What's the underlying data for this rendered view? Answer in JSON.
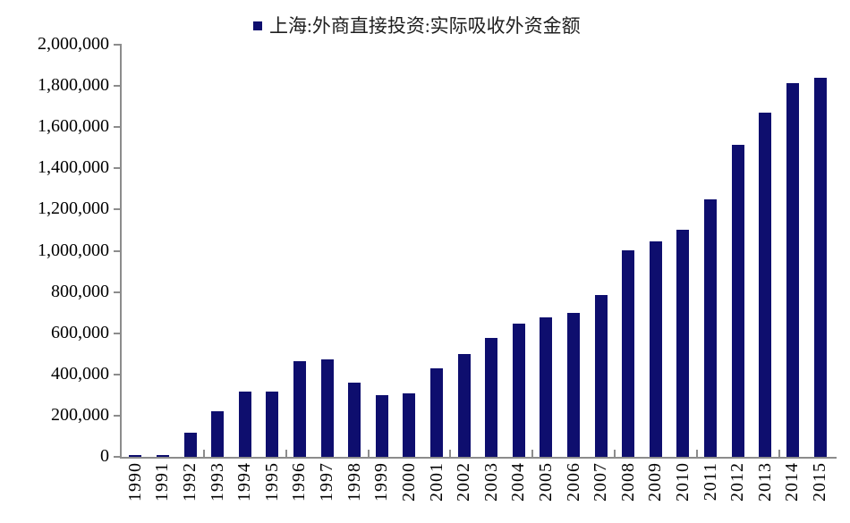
{
  "chart_data": {
    "type": "bar",
    "title": "",
    "legend_label": "上海:外商直接投资:实际吸收外资金额",
    "legend_position": "top-center",
    "legend_marker": "navy-square",
    "xlabel": "",
    "ylabel": "",
    "grid": "off",
    "ylim": [
      0,
      2000000
    ],
    "y_tick_step": 200000,
    "y_tick_labels": [
      "0",
      "200,000",
      "400,000",
      "600,000",
      "800,000",
      "1,000,000",
      "1,200,000",
      "1,400,000",
      "1,600,000",
      "1,800,000",
      "2,000,000"
    ],
    "x_minor_tick_interval": 3,
    "categories": [
      "1990",
      "1991",
      "1992",
      "1993",
      "1994",
      "1995",
      "1996",
      "1997",
      "1998",
      "1999",
      "2000",
      "2001",
      "2002",
      "2003",
      "2004",
      "2005",
      "2006",
      "2007",
      "2008",
      "2009",
      "2010",
      "2011",
      "2012",
      "2013",
      "2014",
      "2015"
    ],
    "values": [
      10000,
      10000,
      115000,
      222000,
      315000,
      315000,
      465000,
      475000,
      360000,
      300000,
      310000,
      430000,
      500000,
      578000,
      645000,
      675000,
      700000,
      785000,
      1000000,
      1045000,
      1100000,
      1250000,
      1515000,
      1670000,
      1815000,
      1840000
    ],
    "colors": {
      "bar": "#0E0E6E",
      "axis": "#8C8C8C",
      "text": "#000000",
      "legend_text": "#1F1F1F",
      "background": "#FFFFFF"
    }
  }
}
